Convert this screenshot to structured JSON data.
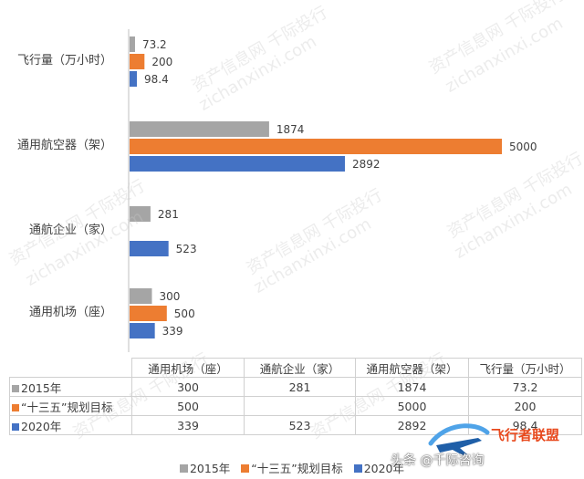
{
  "chart_data": {
    "type": "bar",
    "orientation": "horizontal",
    "categories": [
      "飞行量（万小时）",
      "通用航空器（架）",
      "通航企业（家）",
      "通用机场（座）"
    ],
    "series": [
      {
        "name": "2015年",
        "color": "#a5a5a5",
        "values": [
          73.2,
          1874,
          281,
          300
        ],
        "labels": [
          "73.2",
          "1874",
          "281",
          "300"
        ]
      },
      {
        "name": "“十三五”规划目标",
        "color": "#ed7d31",
        "values": [
          200,
          5000,
          null,
          500
        ],
        "labels": [
          "200",
          "5000",
          "",
          "500"
        ]
      },
      {
        "name": "2020年",
        "color": "#4472c4",
        "values": [
          98.4,
          2892,
          523,
          339
        ],
        "labels": [
          "98.4",
          "2892",
          "523",
          "339"
        ]
      }
    ],
    "xlim": [
      0,
      5000
    ],
    "grid": false,
    "legend": "bottom"
  },
  "table": {
    "columns": [
      "通用机场（座）",
      "通航企业（家）",
      "通用航空器（架）",
      "飞行量（万小时）"
    ],
    "rows": [
      {
        "label": "2015年",
        "color": "#a5a5a5",
        "cells": [
          "300",
          "281",
          "1874",
          "73.2"
        ]
      },
      {
        "label": "“十三五”规划目标",
        "color": "#ed7d31",
        "cells": [
          "500",
          "",
          "5000",
          "200"
        ]
      },
      {
        "label": "2020年",
        "color": "#4472c4",
        "cells": [
          "339",
          "523",
          "2892",
          "98.4"
        ]
      }
    ]
  },
  "legend": {
    "items": [
      {
        "label": "2015年",
        "color": "#a5a5a5"
      },
      {
        "label": "“十三五”规划目标",
        "color": "#ed7d31"
      },
      {
        "label": "2020年",
        "color": "#4472c4"
      }
    ]
  },
  "watermark": {
    "lines": [
      "资产信息网 千际投行",
      "zichanxinxi.com"
    ]
  },
  "logo": {
    "title": "飞行者联盟",
    "credit": "头条 @千际咨询"
  }
}
